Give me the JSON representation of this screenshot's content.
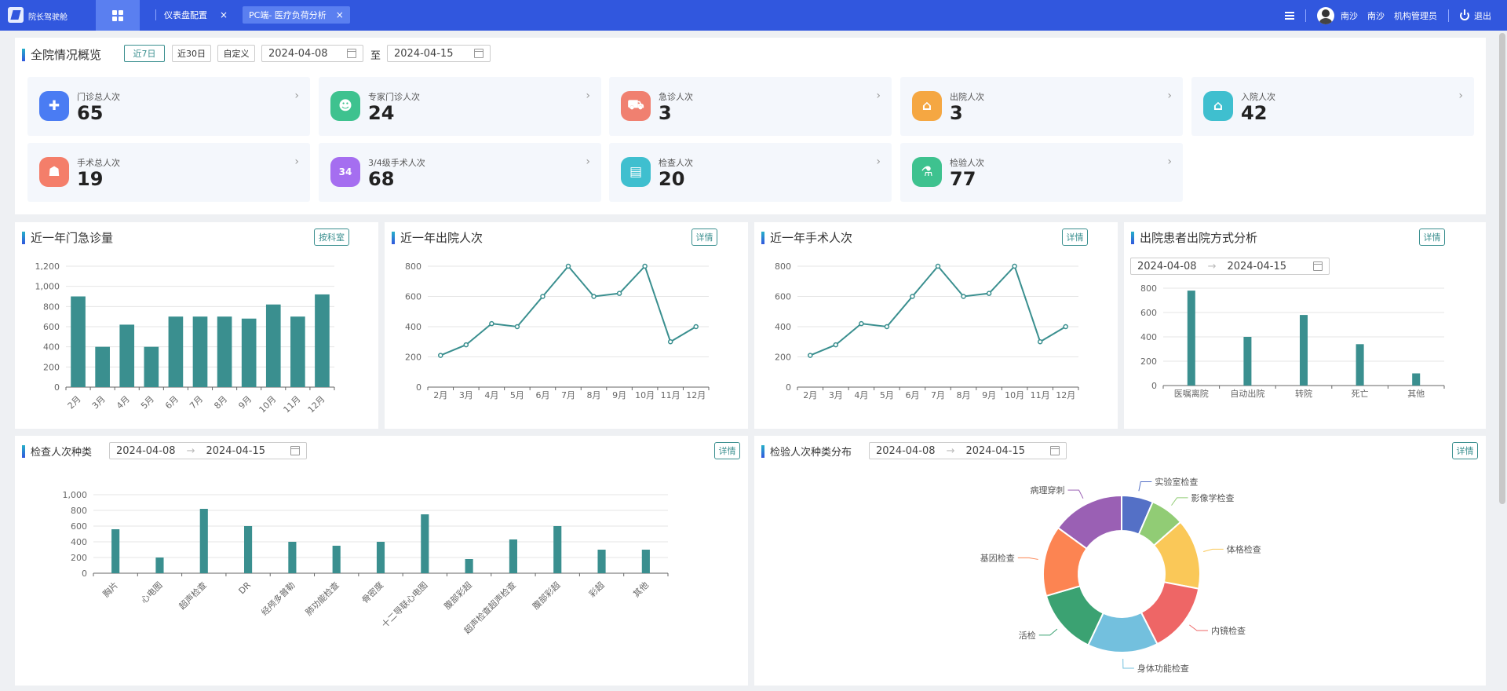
{
  "topbar": {
    "app_title": "院长驾驶舱",
    "tabs": [
      {
        "label": "仪表盘配置",
        "close": "×"
      },
      {
        "label": "PC端- 医疗负荷分析",
        "close": "×"
      }
    ],
    "user_name": "南沙",
    "org": "南沙",
    "role": "机构管理员",
    "logout": "退出"
  },
  "overview": {
    "title": "全院情况概览",
    "filters": [
      "近7日",
      "近30日",
      "自定义"
    ],
    "date_start": "2024-04-08",
    "to": "至",
    "date_end": "2024-04-15",
    "stats": [
      {
        "label": "门诊总人次",
        "value": "65",
        "icon": "plus-circle-icon",
        "color": "#4a7cf3",
        "glyph": "✚"
      },
      {
        "label": "专家门诊人次",
        "value": "24",
        "icon": "doctor-group-icon",
        "color": "#3ec28f",
        "glyph": "☻"
      },
      {
        "label": "急诊人次",
        "value": "3",
        "icon": "ambulance-icon",
        "color": "#f08070",
        "glyph": "⛟"
      },
      {
        "label": "出院人次",
        "value": "3",
        "icon": "discharge-house-icon",
        "color": "#f5a742",
        "glyph": "⌂"
      },
      {
        "label": "入院人次",
        "value": "42",
        "icon": "admission-house-icon",
        "color": "#3fbfcf",
        "glyph": "⌂"
      },
      {
        "label": "手术总人次",
        "value": "19",
        "icon": "surgery-bed-icon",
        "color": "#f47e6a",
        "glyph": "☗"
      },
      {
        "label": "3/4级手术人次",
        "value": "68",
        "icon": "level-34-icon",
        "color": "#a56ef0",
        "glyph": "34"
      },
      {
        "label": "检查人次",
        "value": "20",
        "icon": "clipboard-icon",
        "color": "#3fbfcf",
        "glyph": "▤"
      },
      {
        "label": "检验人次",
        "value": "77",
        "icon": "flask-icon",
        "color": "#3ec28f",
        "glyph": "⚗"
      }
    ]
  },
  "panels": {
    "outpatient": {
      "title": "近一年门急诊量",
      "button": "按科室"
    },
    "discharge": {
      "title": "近一年出院人次",
      "button": "详情"
    },
    "surgery": {
      "title": "近一年手术人次",
      "button": "详情"
    },
    "discharge_mode": {
      "title": "出院患者出院方式分析",
      "button": "详情",
      "date_start": "2024-04-08",
      "date_end": "2024-04-15",
      "arrow": "→"
    },
    "exam_types": {
      "title": "检查人次种类",
      "button": "详情",
      "date_start": "2024-04-08",
      "date_end": "2024-04-15",
      "arrow": "→"
    },
    "lab_types": {
      "title": "检验人次种类分布",
      "button": "详情",
      "date_start": "2024-04-08",
      "date_end": "2024-04-15",
      "arrow": "→"
    }
  },
  "chart_data": [
    {
      "type": "bar",
      "title": "近一年门急诊量",
      "categories": [
        "2月",
        "3月",
        "4月",
        "5月",
        "6月",
        "7月",
        "8月",
        "9月",
        "10月",
        "11月",
        "12月"
      ],
      "values": [
        900,
        400,
        620,
        400,
        700,
        700,
        700,
        680,
        820,
        700,
        920
      ],
      "yticks": [
        "0",
        "200",
        "400",
        "600",
        "800",
        "1,000",
        "1,200"
      ],
      "ylim": [
        0,
        1200
      ],
      "color": "#3a8f8f"
    },
    {
      "type": "line",
      "title": "近一年出院人次",
      "categories": [
        "2月",
        "3月",
        "4月",
        "5月",
        "6月",
        "7月",
        "8月",
        "9月",
        "10月",
        "11月",
        "12月"
      ],
      "values": [
        210,
        280,
        420,
        400,
        600,
        800,
        600,
        620,
        800,
        300,
        400
      ],
      "yticks": [
        "0",
        "200",
        "400",
        "600",
        "800"
      ],
      "ylim": [
        0,
        800
      ],
      "color": "#3a8f8f"
    },
    {
      "type": "line",
      "title": "近一年手术人次",
      "categories": [
        "2月",
        "3月",
        "4月",
        "5月",
        "6月",
        "7月",
        "8月",
        "9月",
        "10月",
        "11月",
        "12月"
      ],
      "values": [
        210,
        280,
        420,
        400,
        600,
        800,
        600,
        620,
        800,
        300,
        400
      ],
      "yticks": [
        "0",
        "200",
        "400",
        "600",
        "800"
      ],
      "ylim": [
        0,
        800
      ],
      "color": "#3a8f8f"
    },
    {
      "type": "bar",
      "title": "出院患者出院方式分析",
      "categories": [
        "医嘱离院",
        "自动出院",
        "转院",
        "死亡",
        "其他"
      ],
      "values": [
        780,
        400,
        580,
        340,
        100
      ],
      "yticks": [
        "0",
        "200",
        "400",
        "600",
        "800"
      ],
      "ylim": [
        0,
        800
      ],
      "color": "#3a8f8f"
    },
    {
      "type": "bar",
      "title": "检查人次种类",
      "categories": [
        "胸片",
        "心电图",
        "超声检查",
        "DR",
        "经颅多普勒",
        "肺功能检查",
        "骨密度",
        "十二导联心电图",
        "腹部彩超",
        "超声检查超声检查",
        "腹部彩超",
        "彩超",
        "其他"
      ],
      "values": [
        560,
        200,
        820,
        600,
        400,
        350,
        400,
        750,
        180,
        430,
        600,
        300,
        300
      ],
      "yticks": [
        "0",
        "200",
        "400",
        "600",
        "800",
        "1,000"
      ],
      "ylim": [
        0,
        1000
      ],
      "color": "#3a8f8f"
    },
    {
      "type": "pie",
      "title": "检验人次种类分布",
      "labels": [
        "实验室检查",
        "影像学检查",
        "体格检查",
        "内镜检查",
        "身体功能检查",
        "活检",
        "基因检查",
        "病理穿刺"
      ],
      "values": [
        6.5,
        7,
        14.5,
        14.5,
        14.5,
        13.5,
        14.5,
        15
      ],
      "colors": [
        "#5470c6",
        "#91cc75",
        "#fac858",
        "#ee6666",
        "#73c0de",
        "#3ba272",
        "#fc8452",
        "#9a60b4"
      ]
    }
  ]
}
